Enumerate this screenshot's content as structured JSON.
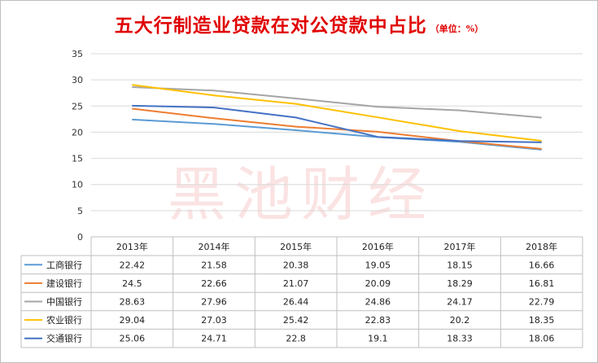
{
  "chart_data": {
    "type": "line",
    "title": "五大行制造业贷款在对公贷款中占比",
    "unit_note": "（单位：%）",
    "watermark": "黑池财经",
    "categories": [
      "2013年",
      "2014年",
      "2015年",
      "2016年",
      "2017年",
      "2018年"
    ],
    "ylim": [
      0,
      35
    ],
    "yticks": [
      0,
      5,
      10,
      15,
      20,
      25,
      30,
      35
    ],
    "grid": true,
    "legend_placement": "data-table",
    "series": [
      {
        "name": "工商银行",
        "color": "#5b9bd5",
        "values": [
          22.42,
          21.58,
          20.38,
          19.05,
          18.15,
          16.66
        ],
        "labels": [
          "22.42",
          "21.58",
          "20.38",
          "19.05",
          "18.15",
          "16.66"
        ]
      },
      {
        "name": "建设银行",
        "color": "#ed7d31",
        "values": [
          24.5,
          22.66,
          21.07,
          20.09,
          18.29,
          16.81
        ],
        "labels": [
          "24.5",
          "22.66",
          "21.07",
          "20.09",
          "18.29",
          "16.81"
        ]
      },
      {
        "name": "中国银行",
        "color": "#a5a5a5",
        "values": [
          28.63,
          27.96,
          26.44,
          24.86,
          24.17,
          22.79
        ],
        "labels": [
          "28.63",
          "27.96",
          "26.44",
          "24.86",
          "24.17",
          "22.79"
        ]
      },
      {
        "name": "农业银行",
        "color": "#ffc000",
        "values": [
          29.04,
          27.03,
          25.42,
          22.83,
          20.2,
          18.35
        ],
        "labels": [
          "29.04",
          "27.03",
          "25.42",
          "22.83",
          "20.2",
          "18.35"
        ]
      },
      {
        "name": "交通银行",
        "color": "#4472c4",
        "values": [
          25.06,
          24.71,
          22.8,
          19.1,
          18.33,
          18.06
        ],
        "labels": [
          "25.06",
          "24.71",
          "22.8",
          "19.1",
          "18.33",
          "18.06"
        ]
      }
    ]
  }
}
